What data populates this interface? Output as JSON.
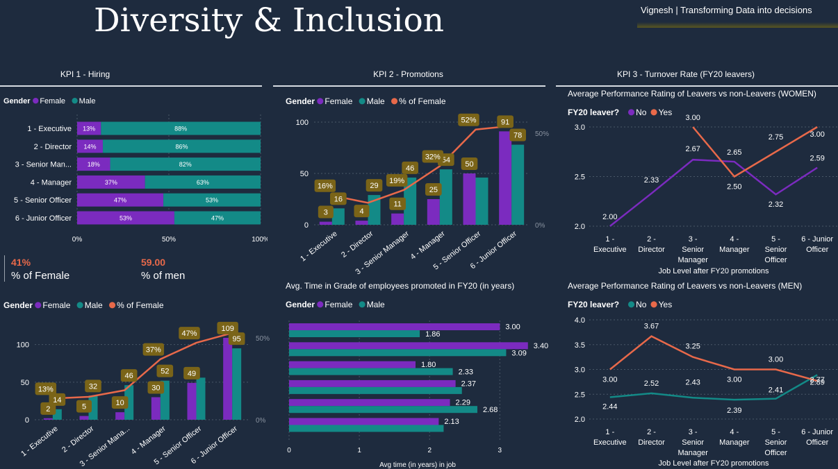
{
  "header": {
    "title": "Diversity & Inclusion",
    "brand": "Vignesh | Transforming Data into decisions"
  },
  "colors": {
    "female": "#7b2bbf",
    "male": "#138a87",
    "pct": "#e8694a",
    "label_bg": "#7a6418",
    "bg": "#1e2b3e"
  },
  "kpis": [
    "KPI 1 - Hiring",
    "KPI 2 - Promotions",
    "KPI 3 - Turnover Rate (FY20 leavers)"
  ],
  "kpi1_cards": {
    "female_value": "41%",
    "female_label": "% of Female",
    "men_value": "59.00",
    "men_label": "% of men"
  },
  "chart_data": [
    {
      "id": "hiring_share",
      "type": "bar",
      "orientation": "horizontal-stacked-100",
      "legend_title": "Gender",
      "legend": [
        "Female",
        "Male"
      ],
      "categories": [
        "1 - Executive",
        "2 - Director",
        "3 - Senior Man...",
        "4 - Manager",
        "5 - Senior Officer",
        "6 - Junior Officer"
      ],
      "series": [
        {
          "name": "Female",
          "values": [
            13,
            14,
            18,
            37,
            47,
            53
          ],
          "labels": [
            "13%",
            "14%",
            "18%",
            "37%",
            "47%",
            "53%"
          ]
        },
        {
          "name": "Male",
          "values": [
            88,
            86,
            82,
            63,
            53,
            47
          ],
          "labels": [
            "88%",
            "86%",
            "82%",
            "63%",
            "53%",
            "47%"
          ]
        }
      ],
      "xticks": [
        "0%",
        "50%",
        "100%"
      ]
    },
    {
      "id": "hiring_counts",
      "type": "bar",
      "legend_title": "Gender",
      "legend": [
        "Female",
        "Male",
        "% of Female"
      ],
      "categories": [
        "1 - Executive",
        "2 - Director",
        "3 - Senior Mana...",
        "4 - Manager",
        "5 - Senior Officer",
        "6 - Junior Officer"
      ],
      "series": [
        {
          "name": "Female",
          "values": [
            2,
            5,
            10,
            30,
            49,
            109
          ]
        },
        {
          "name": "Male",
          "values": [
            14,
            32,
            46,
            52,
            56,
            95
          ]
        },
        {
          "name": "% of Female",
          "values": [
            13,
            14,
            18,
            37,
            47,
            53
          ]
        }
      ],
      "callouts": [
        {
          "t": "2",
          "s": 0,
          "i": 0
        },
        {
          "t": "14",
          "s": 1,
          "i": 0
        },
        {
          "t": "13%",
          "s": 2,
          "i": 0
        },
        {
          "t": "5",
          "s": 0,
          "i": 1
        },
        {
          "t": "32",
          "s": 1,
          "i": 1
        },
        {
          "t": "10",
          "s": 0,
          "i": 2
        },
        {
          "t": "46",
          "s": 1,
          "i": 2
        },
        {
          "t": "30",
          "s": 0,
          "i": 3
        },
        {
          "t": "52",
          "s": 1,
          "i": 3
        },
        {
          "t": "37%",
          "s": 2,
          "i": 3
        },
        {
          "t": "49",
          "s": 0,
          "i": 4
        },
        {
          "t": "47%",
          "s": 2,
          "i": 4
        },
        {
          "t": "109",
          "s": 0,
          "i": 5
        },
        {
          "t": "95",
          "s": 1,
          "i": 5
        }
      ],
      "yticks": [
        "0",
        "50",
        "100"
      ],
      "y2ticks": [
        "0%",
        "50%"
      ],
      "ylim": [
        0,
        120
      ]
    },
    {
      "id": "promotions",
      "type": "bar",
      "legend_title": "Gender",
      "legend": [
        "Female",
        "Male",
        "% of Female"
      ],
      "categories": [
        "1 - Executive",
        "2 - Director",
        "3 - Senior Manager",
        "4 - Manager",
        "5 - Senior Officer",
        "6 - Junior Officer"
      ],
      "series": [
        {
          "name": "Female",
          "values": [
            3,
            4,
            11,
            25,
            50,
            91
          ]
        },
        {
          "name": "Male",
          "values": [
            16,
            29,
            46,
            54,
            46,
            78
          ]
        },
        {
          "name": "% of Female",
          "values": [
            16,
            12,
            19,
            32,
            52,
            54
          ]
        }
      ],
      "callouts": [
        {
          "t": "3",
          "s": 0,
          "i": 0
        },
        {
          "t": "16",
          "s": 1,
          "i": 0
        },
        {
          "t": "16%",
          "s": 2,
          "i": 0
        },
        {
          "t": "4",
          "s": 0,
          "i": 1
        },
        {
          "t": "29",
          "s": 1,
          "i": 1
        },
        {
          "t": "11",
          "s": 0,
          "i": 2
        },
        {
          "t": "46",
          "s": 1,
          "i": 2
        },
        {
          "t": "19%",
          "s": 2,
          "i": 2
        },
        {
          "t": "25",
          "s": 0,
          "i": 3
        },
        {
          "t": "54",
          "s": 1,
          "i": 3
        },
        {
          "t": "32%",
          "s": 2,
          "i": 3
        },
        {
          "t": "50",
          "s": 0,
          "i": 4
        },
        {
          "t": "52%",
          "s": 2,
          "i": 4
        },
        {
          "t": "91",
          "s": 0,
          "i": 5
        },
        {
          "t": "78",
          "s": 1,
          "i": 5
        }
      ],
      "yticks": [
        "0",
        "50",
        "100"
      ],
      "y2ticks": [
        "0%",
        "50%"
      ],
      "ylim": [
        0,
        100
      ]
    },
    {
      "id": "time_in_grade",
      "type": "bar",
      "orientation": "horizontal",
      "title": "Avg. Time in Grade of employees promoted in FY20 (in years)",
      "legend_title": "Gender",
      "legend": [
        "Female",
        "Male"
      ],
      "series": [
        {
          "name": "Female",
          "values": [
            3.0,
            3.4,
            1.8,
            2.37,
            2.29,
            2.13
          ],
          "labels": [
            "3.00",
            "3.40",
            "1.80",
            "2.37",
            "2.29",
            "2.13"
          ]
        },
        {
          "name": "Male",
          "values": [
            1.86,
            3.09,
            2.33,
            2.46,
            2.68,
            2.2
          ],
          "labels": [
            "1.86",
            "3.09",
            "2.33",
            "",
            "2.68",
            ""
          ]
        }
      ],
      "xticks": [
        "0",
        "1",
        "2",
        "3"
      ],
      "xlabel": "Avg time (in years) in job",
      "xlim": [
        0,
        3.6
      ]
    },
    {
      "id": "perf_women",
      "type": "line",
      "title": "Average Performance Rating of Leavers vs non-Leavers (WOMEN)",
      "legend_title": "FY20 leaver?",
      "legend": [
        "No",
        "Yes"
      ],
      "categories": [
        [
          "1 -",
          "Executive"
        ],
        [
          "2 -",
          "Director"
        ],
        [
          "3 -",
          "Senior",
          "Manager"
        ],
        [
          "4 -",
          "Manager"
        ],
        [
          "5 -",
          "Senior",
          "Officer"
        ],
        [
          "6 - Junior",
          "Officer"
        ]
      ],
      "series": [
        {
          "name": "No",
          "values": [
            2.0,
            2.33,
            2.67,
            2.65,
            2.32,
            2.59
          ],
          "labels": [
            "2.00",
            "2.33",
            "2.67",
            "2.65",
            "2.32",
            "2.59"
          ]
        },
        {
          "name": "Yes",
          "values": [
            null,
            null,
            3.0,
            2.5,
            2.75,
            3.0
          ],
          "labels": [
            "",
            "",
            "3.00",
            "2.50",
            "2.75",
            "3.00"
          ]
        }
      ],
      "yticks": [
        "2.0",
        "2.5",
        "3.0"
      ],
      "ylim": [
        2.0,
        3.0
      ],
      "xlabel": "Job Level after FY20 promotions"
    },
    {
      "id": "perf_men",
      "type": "line",
      "title": "Average Performance Rating of Leavers vs non-Leavers (MEN)",
      "legend_title": "FY20 leaver?",
      "legend": [
        "No",
        "Yes"
      ],
      "categories": [
        [
          "1 -",
          "Executive"
        ],
        [
          "2 -",
          "Director"
        ],
        [
          "3 -",
          "Senior",
          "Manager"
        ],
        [
          "4 -",
          "Manager"
        ],
        [
          "5 -",
          "Senior",
          "Officer"
        ],
        [
          "6 - Junior",
          "Officer"
        ]
      ],
      "series": [
        {
          "name": "No",
          "values": [
            2.44,
            2.52,
            2.43,
            2.39,
            2.41,
            2.89
          ],
          "labels": [
            "2.44",
            "2.52",
            "2.43",
            "2.39",
            "2.41",
            "2.89"
          ]
        },
        {
          "name": "Yes",
          "values": [
            3.0,
            3.67,
            3.25,
            3.0,
            3.0,
            2.77
          ],
          "labels": [
            "3.00",
            "3.67",
            "3.25",
            "3.00",
            "3.00",
            "2.77"
          ]
        }
      ],
      "yticks": [
        "2.0",
        "2.5",
        "3.0",
        "3.5",
        "4.0"
      ],
      "ylim": [
        2.0,
        4.0
      ],
      "xlabel": "Job Level after FY20 promotions"
    }
  ]
}
